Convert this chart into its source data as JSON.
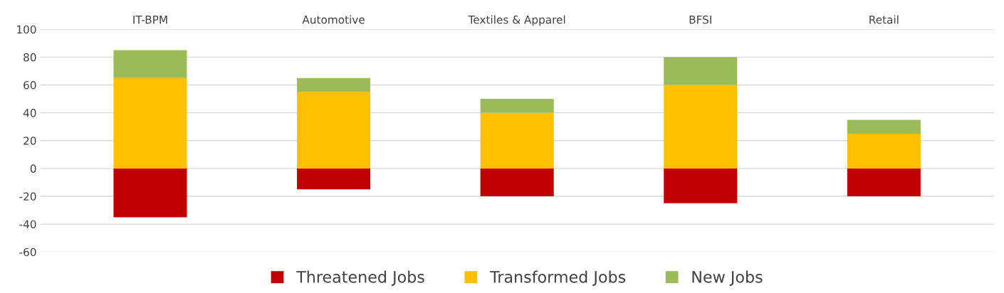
{
  "chart_data": {
    "type": "bar",
    "stacked": true,
    "categories": [
      "IT-BPM",
      "Automotive",
      "Textiles & Apparel",
      "BFSI",
      "Retail"
    ],
    "series": [
      {
        "name": "Threatened Jobs",
        "color": "#c00000",
        "values": [
          -35,
          -15,
          -20,
          -25,
          -20
        ]
      },
      {
        "name": "Transformed Jobs",
        "color": "#ffc000",
        "values": [
          65,
          55,
          40,
          60,
          25
        ]
      },
      {
        "name": "New Jobs",
        "color": "#9bbb59",
        "values": [
          20,
          10,
          10,
          20,
          10
        ]
      }
    ],
    "ylim": [
      -60,
      100
    ],
    "yticks": [
      -60,
      -40,
      -20,
      0,
      20,
      40,
      60,
      80,
      100
    ],
    "grid": "y",
    "legend": "bottom"
  }
}
